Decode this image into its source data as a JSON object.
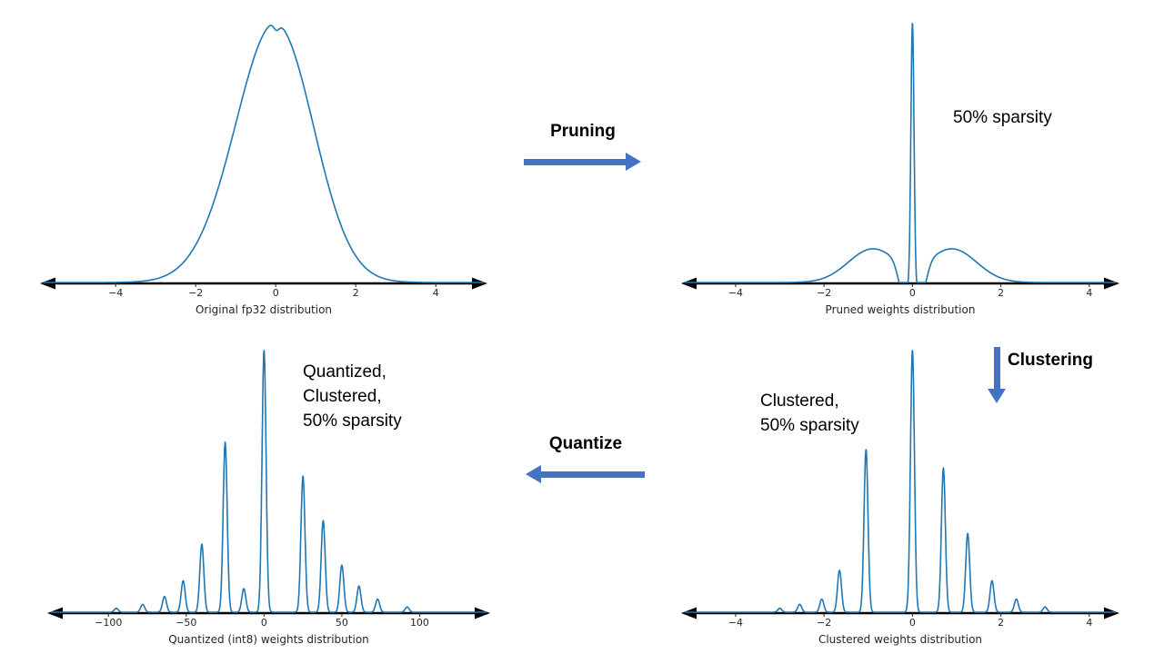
{
  "colors": {
    "curve": "#1f77b4",
    "axis": "#000000",
    "arrow": "#4472c4",
    "tick_text": "#262626"
  },
  "arrows": {
    "pruning": {
      "label": "Pruning",
      "direction": "right"
    },
    "clustering": {
      "label": "Clustering",
      "direction": "down"
    },
    "quantize": {
      "label": "Quantize",
      "direction": "left"
    }
  },
  "chart_data": [
    {
      "id": "original",
      "type": "line",
      "title": "Original fp32 distribution",
      "annotation": null,
      "x_range": [
        -5.8,
        5.2
      ],
      "ticks": [
        {
          "v": -4,
          "label": "−4"
        },
        {
          "v": -2,
          "label": "−2"
        },
        {
          "v": 0,
          "label": "0"
        },
        {
          "v": 2,
          "label": "2"
        },
        {
          "v": 4,
          "label": "4"
        }
      ],
      "curve": {
        "description": "smooth bell-shaped density of fp32 weights, peak near 0, support roughly -3.5 to 3.5",
        "bumps": [
          {
            "x": -0.2,
            "w": 1.0,
            "h": 0.97
          },
          {
            "x": 0.25,
            "w": 0.85,
            "h": 0.5
          },
          {
            "x": 0.02,
            "w": 0.07,
            "h": -0.04
          }
        ]
      }
    },
    {
      "id": "pruned",
      "type": "line",
      "title": "Pruned weights distribution",
      "annotation": "50% sparsity",
      "x_range": [
        -5.15,
        4.6
      ],
      "ticks": [
        {
          "v": -4,
          "label": "−4"
        },
        {
          "v": -2,
          "label": "−2"
        },
        {
          "v": 0,
          "label": "0"
        },
        {
          "v": 2,
          "label": "2"
        },
        {
          "v": 4,
          "label": "4"
        }
      ],
      "curve": {
        "description": "tall narrow spike at 0 (pruned-to-zero weights) plus low shoulders near ±0.9, zero density just around ±0.25",
        "bumps": [
          {
            "x": 0,
            "w": 0.035,
            "h": 1.0
          },
          {
            "x": -0.9,
            "w": 0.55,
            "h": 0.13
          },
          {
            "x": 0.9,
            "w": 0.55,
            "h": 0.13
          },
          {
            "x": -0.2,
            "w": 0.12,
            "h": -0.12
          },
          {
            "x": 0.2,
            "w": 0.12,
            "h": -0.12
          }
        ]
      }
    },
    {
      "id": "clustered",
      "type": "line",
      "title": "Clustered weights distribution",
      "annotation": "Clustered,\n50% sparsity",
      "x_range": [
        -5.15,
        4.6
      ],
      "ticks": [
        {
          "v": -4,
          "label": "−4"
        },
        {
          "v": -2,
          "label": "−2"
        },
        {
          "v": 0,
          "label": "0"
        },
        {
          "v": 2,
          "label": "2"
        },
        {
          "v": 4,
          "label": "4"
        }
      ],
      "curve": {
        "description": "narrow spikes at discrete cluster centroids; heights relative to tallest spike at 0",
        "bumps": [
          {
            "x": -3.0,
            "w": 0.045,
            "h": 0.015
          },
          {
            "x": -2.55,
            "w": 0.045,
            "h": 0.03
          },
          {
            "x": -2.05,
            "w": 0.045,
            "h": 0.05
          },
          {
            "x": -1.65,
            "w": 0.045,
            "h": 0.16
          },
          {
            "x": -1.05,
            "w": 0.045,
            "h": 0.62
          },
          {
            "x": 0,
            "w": 0.045,
            "h": 1.0
          },
          {
            "x": 0.7,
            "w": 0.045,
            "h": 0.55
          },
          {
            "x": 1.25,
            "w": 0.045,
            "h": 0.3
          },
          {
            "x": 1.8,
            "w": 0.045,
            "h": 0.12
          },
          {
            "x": 2.35,
            "w": 0.045,
            "h": 0.05
          },
          {
            "x": 3.0,
            "w": 0.045,
            "h": 0.02
          }
        ]
      }
    },
    {
      "id": "quantized",
      "type": "line",
      "title": "Quantized (int8) weights distribution",
      "annotation": "Quantized,\nClustered,\n50% sparsity",
      "x_range": [
        -137,
        143
      ],
      "ticks": [
        {
          "v": -100,
          "label": "−100"
        },
        {
          "v": -50,
          "label": "−50"
        },
        {
          "v": 0,
          "label": "0"
        },
        {
          "v": 50,
          "label": "50"
        },
        {
          "v": 100,
          "label": "100"
        }
      ],
      "curve": {
        "description": "narrow spikes at int8 quantized cluster values; heights relative to tallest spike at 0",
        "bumps": [
          {
            "x": -95,
            "w": 1.3,
            "h": 0.015
          },
          {
            "x": -78,
            "w": 1.3,
            "h": 0.03
          },
          {
            "x": -64,
            "w": 1.3,
            "h": 0.06
          },
          {
            "x": -52,
            "w": 1.3,
            "h": 0.12
          },
          {
            "x": -40,
            "w": 1.3,
            "h": 0.26
          },
          {
            "x": -25,
            "w": 1.3,
            "h": 0.65
          },
          {
            "x": -13,
            "w": 1.3,
            "h": 0.09
          },
          {
            "x": 0,
            "w": 1.3,
            "h": 1.0
          },
          {
            "x": 25,
            "w": 1.3,
            "h": 0.52
          },
          {
            "x": 38,
            "w": 1.3,
            "h": 0.35
          },
          {
            "x": 50,
            "w": 1.3,
            "h": 0.18
          },
          {
            "x": 61,
            "w": 1.3,
            "h": 0.1
          },
          {
            "x": 73,
            "w": 1.3,
            "h": 0.05
          },
          {
            "x": 92,
            "w": 1.3,
            "h": 0.02
          }
        ]
      }
    }
  ]
}
